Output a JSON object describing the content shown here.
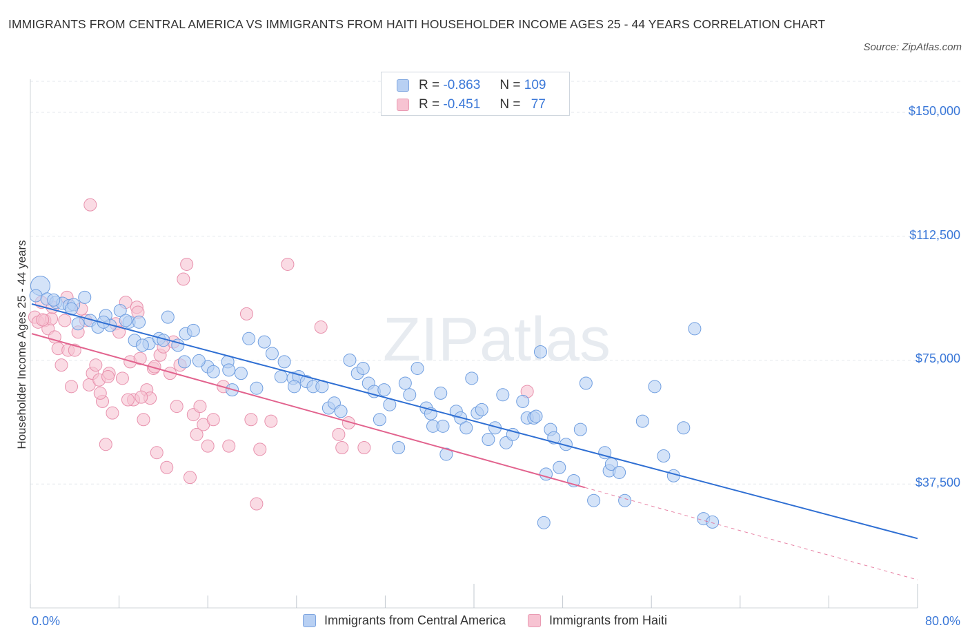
{
  "header": {
    "title": "IMMIGRANTS FROM CENTRAL AMERICA VS IMMIGRANTS FROM HAITI HOUSEHOLDER INCOME AGES 25 - 44 YEARS CORRELATION CHART",
    "source": "Source: ZipAtlas.com"
  },
  "watermark": "ZIPatlas",
  "legend": {
    "r_label": "R =",
    "n_label": "N =",
    "blue": {
      "r": "-0.863",
      "n": "109"
    },
    "pink": {
      "r": "-0.451",
      "n": "77"
    }
  },
  "colors": {
    "blue_fill": "#b8d0f3",
    "blue_stroke": "#6f9ee0",
    "blue_line": "#2f6fd3",
    "pink_fill": "#f7c3d2",
    "pink_stroke": "#e891ad",
    "pink_line": "#e2638e",
    "axis_text": "#3b78d8"
  },
  "chart_data": {
    "type": "scatter",
    "title": "IMMIGRANTS FROM CENTRAL AMERICA VS IMMIGRANTS FROM HAITI HOUSEHOLDER INCOME AGES 25 - 44 YEARS CORRELATION CHART",
    "xlabel": "",
    "ylabel": "Householder Income Ages 25 - 44 years",
    "xlim": [
      0,
      80
    ],
    "ylim": [
      0,
      160000
    ],
    "x_tick_labels": [
      "0.0%",
      "80.0%"
    ],
    "y_ticks": [
      37500,
      75000,
      112500,
      150000
    ],
    "y_tick_labels": [
      "$37,500",
      "$75,000",
      "$112,500",
      "$150,000"
    ],
    "grid": true,
    "legend_position": "top-center",
    "series": [
      {
        "name": "Immigrants from Central America",
        "color": "#b8d0f3",
        "trend": {
          "x": [
            0,
            80
          ],
          "y": [
            92000,
            21000
          ],
          "dashed_from": null
        },
        "points": [
          [
            0.9,
            97500
          ],
          [
            0.5,
            94500
          ],
          [
            1.5,
            93500
          ],
          [
            2.3,
            92500
          ],
          [
            2.9,
            92200
          ],
          [
            3.5,
            91500
          ],
          [
            3.9,
            91800
          ],
          [
            3.7,
            90500
          ],
          [
            4.9,
            94000
          ],
          [
            5.4,
            87000
          ],
          [
            6.1,
            85000
          ],
          [
            6.8,
            88500
          ],
          [
            7.2,
            85500
          ],
          [
            8.1,
            90000
          ],
          [
            8.9,
            86500
          ],
          [
            9.8,
            86500
          ],
          [
            8.6,
            87000
          ],
          [
            10.7,
            80000
          ],
          [
            9.4,
            81000
          ],
          [
            11.6,
            81500
          ],
          [
            12.4,
            88000
          ],
          [
            13.3,
            79500
          ],
          [
            14.0,
            83000
          ],
          [
            14.7,
            84000
          ],
          [
            13.9,
            74500
          ],
          [
            16.0,
            73000
          ],
          [
            16.5,
            71500
          ],
          [
            17.8,
            74500
          ],
          [
            17.9,
            72000
          ],
          [
            18.2,
            66000
          ],
          [
            19.0,
            71000
          ],
          [
            19.7,
            81500
          ],
          [
            20.4,
            66500
          ],
          [
            21.1,
            80500
          ],
          [
            21.8,
            77000
          ],
          [
            22.6,
            70000
          ],
          [
            22.9,
            74500
          ],
          [
            23.7,
            69500
          ],
          [
            24.2,
            70000
          ],
          [
            23.8,
            67000
          ],
          [
            24.9,
            68500
          ],
          [
            25.5,
            67000
          ],
          [
            26.3,
            67000
          ],
          [
            26.9,
            60500
          ],
          [
            27.4,
            62000
          ],
          [
            28.0,
            59500
          ],
          [
            28.8,
            75000
          ],
          [
            29.5,
            71000
          ],
          [
            30.0,
            72500
          ],
          [
            30.5,
            68000
          ],
          [
            31.0,
            65500
          ],
          [
            31.5,
            57000
          ],
          [
            31.9,
            66000
          ],
          [
            32.4,
            61500
          ],
          [
            33.2,
            48500
          ],
          [
            33.8,
            68000
          ],
          [
            34.2,
            64500
          ],
          [
            34.9,
            72500
          ],
          [
            35.7,
            60500
          ],
          [
            36.3,
            55000
          ],
          [
            37.0,
            65000
          ],
          [
            37.2,
            55000
          ],
          [
            37.5,
            46500
          ],
          [
            38.4,
            59500
          ],
          [
            38.8,
            57500
          ],
          [
            39.3,
            54500
          ],
          [
            39.8,
            69500
          ],
          [
            40.3,
            59000
          ],
          [
            40.7,
            60000
          ],
          [
            41.3,
            51000
          ],
          [
            41.9,
            54500
          ],
          [
            42.6,
            64500
          ],
          [
            42.9,
            50000
          ],
          [
            43.5,
            52500
          ],
          [
            44.4,
            62500
          ],
          [
            44.8,
            57500
          ],
          [
            45.4,
            57500
          ],
          [
            46.0,
            77500
          ],
          [
            46.5,
            40500
          ],
          [
            46.9,
            54000
          ],
          [
            47.2,
            51500
          ],
          [
            47.7,
            42500
          ],
          [
            48.3,
            49500
          ],
          [
            49.0,
            38500
          ],
          [
            49.6,
            54000
          ],
          [
            50.1,
            68000
          ],
          [
            50.8,
            32500
          ],
          [
            51.8,
            47000
          ],
          [
            52.2,
            41500
          ],
          [
            52.4,
            43500
          ],
          [
            53.1,
            41000
          ],
          [
            53.6,
            32500
          ],
          [
            55.2,
            56500
          ],
          [
            56.3,
            67000
          ],
          [
            57.1,
            46000
          ],
          [
            58.0,
            40000
          ],
          [
            58.9,
            54500
          ],
          [
            59.9,
            84500
          ],
          [
            60.7,
            27000
          ],
          [
            61.5,
            26000
          ],
          [
            2.1,
            93200
          ],
          [
            4.3,
            86000
          ],
          [
            6.6,
            86500
          ],
          [
            10.1,
            79500
          ],
          [
            12.0,
            81000
          ],
          [
            15.2,
            74800
          ],
          [
            46.3,
            25800
          ],
          [
            36.1,
            58800
          ],
          [
            45.6,
            58000
          ]
        ],
        "sizes_note": "first point is a larger bubble"
      },
      {
        "name": "Immigrants from Haiti",
        "color": "#f7c3d2",
        "trend": {
          "x": [
            0,
            80
          ],
          "y": [
            83000,
            8500
          ],
          "dashed_from": 50
        },
        "points": [
          [
            0.4,
            88000
          ],
          [
            0.7,
            86500
          ],
          [
            1.0,
            92500
          ],
          [
            1.3,
            87000
          ],
          [
            1.6,
            84500
          ],
          [
            1.9,
            87500
          ],
          [
            2.2,
            82000
          ],
          [
            2.5,
            78500
          ],
          [
            2.8,
            73500
          ],
          [
            3.1,
            87000
          ],
          [
            3.4,
            78000
          ],
          [
            3.7,
            67000
          ],
          [
            4.0,
            78000
          ],
          [
            4.3,
            83500
          ],
          [
            4.6,
            90500
          ],
          [
            5.0,
            87000
          ],
          [
            5.3,
            67500
          ],
          [
            5.6,
            71000
          ],
          [
            5.9,
            73500
          ],
          [
            6.2,
            69000
          ],
          [
            6.5,
            62500
          ],
          [
            6.8,
            49500
          ],
          [
            7.1,
            71000
          ],
          [
            7.4,
            59000
          ],
          [
            7.7,
            86000
          ],
          [
            8.0,
            83500
          ],
          [
            8.3,
            69500
          ],
          [
            8.6,
            92500
          ],
          [
            9.0,
            74500
          ],
          [
            9.3,
            63000
          ],
          [
            9.6,
            91000
          ],
          [
            9.9,
            75500
          ],
          [
            10.2,
            57000
          ],
          [
            10.5,
            66000
          ],
          [
            10.8,
            63500
          ],
          [
            11.1,
            72500
          ],
          [
            11.4,
            47000
          ],
          [
            11.7,
            76500
          ],
          [
            12.0,
            79000
          ],
          [
            12.3,
            42500
          ],
          [
            12.6,
            71000
          ],
          [
            12.9,
            80500
          ],
          [
            13.2,
            61000
          ],
          [
            13.5,
            73500
          ],
          [
            13.8,
            99500
          ],
          [
            14.1,
            104000
          ],
          [
            14.4,
            39500
          ],
          [
            14.7,
            58500
          ],
          [
            15.0,
            52500
          ],
          [
            15.3,
            61000
          ],
          [
            15.6,
            55500
          ],
          [
            16.0,
            49000
          ],
          [
            16.5,
            57000
          ],
          [
            17.4,
            67000
          ],
          [
            17.9,
            49000
          ],
          [
            19.5,
            89000
          ],
          [
            19.9,
            57000
          ],
          [
            20.4,
            31500
          ],
          [
            20.7,
            48000
          ],
          [
            21.7,
            56500
          ],
          [
            23.2,
            104000
          ],
          [
            26.2,
            85000
          ],
          [
            27.8,
            52500
          ],
          [
            28.1,
            48500
          ],
          [
            28.7,
            56000
          ],
          [
            30.1,
            48500
          ],
          [
            44.8,
            65500
          ],
          [
            5.4,
            122000
          ],
          [
            7.0,
            70000
          ],
          [
            8.8,
            63000
          ],
          [
            1.1,
            87200
          ],
          [
            2.0,
            91000
          ],
          [
            3.3,
            94000
          ],
          [
            6.3,
            65000
          ],
          [
            10.0,
            63800
          ],
          [
            9.7,
            89500
          ],
          [
            11.2,
            73000
          ]
        ]
      }
    ]
  }
}
